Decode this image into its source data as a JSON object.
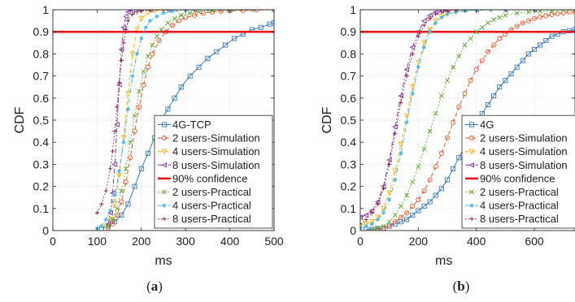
{
  "chart_data": [
    {
      "type": "line",
      "caption": "a",
      "xlabel": "ms",
      "ylabel": "CDF",
      "xlim": [
        0,
        500
      ],
      "ylim": [
        0,
        1
      ],
      "xticks": [
        0,
        100,
        200,
        300,
        400,
        500
      ],
      "yticks": [
        0,
        0.1,
        0.2,
        0.3,
        0.4,
        0.5,
        0.6,
        0.7,
        0.8,
        0.9,
        1
      ],
      "grid": true,
      "legend_position": "bottom-right",
      "series": [
        {
          "name": "4G-TCP",
          "color": "#3a79b9",
          "marker": "square",
          "dash": "solid",
          "x": [
            110,
            125,
            140,
            155,
            170,
            185,
            200,
            215,
            230,
            245,
            260,
            275,
            290,
            310,
            330,
            350,
            370,
            390,
            410,
            430,
            450,
            470,
            490,
            500
          ],
          "y": [
            0.01,
            0.02,
            0.04,
            0.07,
            0.12,
            0.2,
            0.28,
            0.35,
            0.42,
            0.5,
            0.55,
            0.6,
            0.65,
            0.7,
            0.74,
            0.78,
            0.81,
            0.84,
            0.87,
            0.89,
            0.91,
            0.92,
            0.935,
            0.94
          ]
        },
        {
          "name": "2 users-Simulation",
          "color": "#e05a2b",
          "marker": "circle",
          "dash": "dash",
          "x": [
            125,
            135,
            145,
            155,
            165,
            175,
            185,
            195,
            205,
            215,
            225,
            240,
            255,
            270,
            285,
            300,
            320,
            340,
            360,
            380,
            400,
            430,
            460,
            500
          ],
          "y": [
            0.01,
            0.03,
            0.07,
            0.13,
            0.22,
            0.33,
            0.45,
            0.56,
            0.66,
            0.74,
            0.8,
            0.86,
            0.9,
            0.93,
            0.95,
            0.965,
            0.975,
            0.985,
            0.99,
            0.993,
            0.995,
            0.997,
            0.999,
            1.0
          ]
        },
        {
          "name": "4 users-Simulation",
          "color": "#f0b020",
          "marker": "triangle-down",
          "dash": "dash",
          "x": [
            120,
            130,
            140,
            150,
            160,
            170,
            180,
            190,
            200,
            215,
            230,
            250,
            280,
            320,
            400,
            500
          ],
          "y": [
            0.02,
            0.05,
            0.12,
            0.25,
            0.42,
            0.62,
            0.8,
            0.91,
            0.96,
            0.985,
            0.995,
            0.999,
            1.0,
            1.0,
            1.0,
            1.0
          ]
        },
        {
          "name": "8 users-Simulation",
          "color": "#7e3a9c",
          "marker": "triangle-left",
          "dash": "dashdot",
          "x": [
            125,
            130,
            135,
            140,
            145,
            150,
            155,
            160,
            165,
            170,
            180,
            195,
            220,
            260,
            320,
            400,
            500
          ],
          "y": [
            0.03,
            0.08,
            0.17,
            0.3,
            0.48,
            0.66,
            0.82,
            0.92,
            0.97,
            0.99,
            0.997,
            1.0,
            1.0,
            1.0,
            1.0,
            1.0,
            1.0
          ]
        },
        {
          "name": "90% confidence",
          "color": "#e8161b",
          "marker": "none",
          "dash": "solid",
          "x": [
            0,
            500
          ],
          "y": [
            0.9,
            0.9
          ]
        },
        {
          "name": "2 users-Practical",
          "color": "#5aa02c",
          "marker": "x",
          "dash": "dot",
          "x": [
            125,
            135,
            145,
            155,
            165,
            175,
            185,
            195,
            205,
            215,
            225,
            235,
            245,
            260,
            275,
            290,
            310,
            330,
            360,
            400,
            450,
            500
          ],
          "y": [
            0.02,
            0.05,
            0.1,
            0.18,
            0.28,
            0.4,
            0.52,
            0.63,
            0.72,
            0.79,
            0.84,
            0.88,
            0.91,
            0.94,
            0.96,
            0.975,
            0.985,
            0.99,
            0.995,
            0.998,
            1.0,
            1.0
          ]
        },
        {
          "name": "4 users-Practical",
          "color": "#4fb8e0",
          "marker": "star",
          "dash": "dashdot",
          "x": [
            100,
            110,
            120,
            130,
            140,
            150,
            160,
            170,
            180,
            190,
            200,
            210,
            220,
            235,
            250,
            270,
            300,
            350,
            400,
            500
          ],
          "y": [
            0.01,
            0.02,
            0.05,
            0.09,
            0.16,
            0.27,
            0.4,
            0.55,
            0.7,
            0.8,
            0.87,
            0.92,
            0.95,
            0.97,
            0.985,
            0.993,
            0.998,
            1.0,
            1.0,
            1.0
          ]
        },
        {
          "name": "8 users-Practical",
          "color": "#8b1a3a",
          "marker": "plus",
          "dash": "dot",
          "x": [
            100,
            110,
            120,
            130,
            135,
            140,
            145,
            150,
            155,
            160,
            165,
            170,
            180,
            190,
            200,
            220,
            250,
            300,
            400,
            500
          ],
          "y": [
            0.08,
            0.12,
            0.18,
            0.28,
            0.36,
            0.45,
            0.56,
            0.67,
            0.77,
            0.85,
            0.91,
            0.95,
            0.98,
            0.99,
            0.995,
            0.999,
            1.0,
            1.0,
            1.0,
            1.0
          ]
        }
      ]
    },
    {
      "type": "line",
      "caption": "b",
      "xlabel": "ms",
      "ylabel": "CDF",
      "xlim": [
        0,
        740
      ],
      "ylim": [
        0,
        1
      ],
      "xticks": [
        0,
        200,
        400,
        600
      ],
      "yticks": [
        0,
        0.1,
        0.2,
        0.3,
        0.4,
        0.5,
        0.6,
        0.7,
        0.8,
        0.9,
        1
      ],
      "grid": true,
      "legend_position": "bottom-right",
      "series": [
        {
          "name": "4G",
          "color": "#3a79b9",
          "marker": "square",
          "dash": "solid",
          "x": [
            20,
            40,
            60,
            80,
            100,
            120,
            140,
            160,
            180,
            200,
            220,
            240,
            260,
            280,
            300,
            320,
            340,
            360,
            380,
            400,
            420,
            440,
            460,
            480,
            500,
            520,
            540,
            560,
            580,
            600,
            620,
            640,
            660,
            680,
            700,
            720,
            740
          ],
          "y": [
            0.005,
            0.005,
            0.01,
            0.01,
            0.02,
            0.03,
            0.04,
            0.05,
            0.07,
            0.09,
            0.11,
            0.13,
            0.16,
            0.19,
            0.23,
            0.28,
            0.33,
            0.38,
            0.43,
            0.48,
            0.53,
            0.57,
            0.61,
            0.65,
            0.68,
            0.71,
            0.74,
            0.77,
            0.8,
            0.82,
            0.84,
            0.86,
            0.88,
            0.89,
            0.9,
            0.905,
            0.91
          ]
        },
        {
          "name": "2 users-Simulation",
          "color": "#e05a2b",
          "marker": "circle",
          "dash": "dash",
          "x": [
            60,
            80,
            100,
            120,
            140,
            160,
            180,
            200,
            220,
            240,
            260,
            280,
            300,
            320,
            340,
            360,
            380,
            400,
            420,
            440,
            460,
            480,
            500,
            520,
            540,
            560,
            580,
            600,
            620,
            640,
            660,
            680,
            700,
            720,
            740
          ],
          "y": [
            0.005,
            0.01,
            0.02,
            0.04,
            0.06,
            0.08,
            0.11,
            0.14,
            0.18,
            0.23,
            0.29,
            0.35,
            0.42,
            0.49,
            0.56,
            0.62,
            0.68,
            0.73,
            0.77,
            0.81,
            0.84,
            0.87,
            0.89,
            0.91,
            0.925,
            0.94,
            0.95,
            0.96,
            0.967,
            0.973,
            0.978,
            0.982,
            0.986,
            0.989,
            0.99
          ]
        },
        {
          "name": "4 users-Simulation",
          "color": "#f0b020",
          "marker": "triangle-down",
          "dash": "dash",
          "x": [
            0,
            20,
            40,
            60,
            80,
            100,
            120,
            140,
            160,
            180,
            200,
            220,
            240,
            260,
            280,
            300,
            330,
            360,
            400,
            450,
            500,
            600,
            740
          ],
          "y": [
            0.02,
            0.03,
            0.04,
            0.06,
            0.1,
            0.17,
            0.27,
            0.39,
            0.52,
            0.65,
            0.76,
            0.85,
            0.91,
            0.95,
            0.97,
            0.98,
            0.99,
            0.995,
            0.998,
            1.0,
            1.0,
            1.0,
            1.0
          ]
        },
        {
          "name": "8 users-Simulation",
          "color": "#7e3a9c",
          "marker": "triangle-left",
          "dash": "dashdot",
          "x": [
            0,
            20,
            40,
            60,
            80,
            100,
            120,
            140,
            160,
            180,
            200,
            220,
            240,
            260,
            280,
            300,
            330,
            360,
            400,
            500,
            600,
            740
          ],
          "y": [
            0.06,
            0.07,
            0.09,
            0.13,
            0.2,
            0.32,
            0.47,
            0.61,
            0.73,
            0.83,
            0.9,
            0.95,
            0.975,
            0.99,
            0.995,
            0.998,
            1.0,
            1.0,
            1.0,
            1.0,
            1.0,
            1.0
          ]
        },
        {
          "name": "90% confidence",
          "color": "#e8161b",
          "marker": "none",
          "dash": "solid",
          "x": [
            0,
            740
          ],
          "y": [
            0.9,
            0.9
          ]
        },
        {
          "name": "2 users-Practical",
          "color": "#5aa02c",
          "marker": "x",
          "dash": "dot",
          "x": [
            40,
            60,
            80,
            100,
            120,
            140,
            160,
            180,
            200,
            220,
            240,
            260,
            280,
            300,
            320,
            340,
            360,
            380,
            400,
            420,
            440,
            460,
            480,
            500,
            540,
            580,
            620,
            660,
            700,
            740
          ],
          "y": [
            0.005,
            0.01,
            0.02,
            0.04,
            0.07,
            0.11,
            0.16,
            0.22,
            0.29,
            0.37,
            0.45,
            0.53,
            0.61,
            0.68,
            0.74,
            0.79,
            0.84,
            0.87,
            0.9,
            0.92,
            0.94,
            0.955,
            0.965,
            0.975,
            0.985,
            0.99,
            0.993,
            0.996,
            0.998,
            1.0
          ]
        },
        {
          "name": "4 users-Practical",
          "color": "#4fb8e0",
          "marker": "star",
          "dash": "dashdot",
          "x": [
            0,
            20,
            40,
            60,
            80,
            100,
            120,
            140,
            160,
            180,
            200,
            220,
            240,
            260,
            280,
            300,
            330,
            360,
            400,
            450,
            500,
            600,
            740
          ],
          "y": [
            0.01,
            0.02,
            0.03,
            0.05,
            0.08,
            0.14,
            0.23,
            0.35,
            0.49,
            0.62,
            0.74,
            0.83,
            0.9,
            0.94,
            0.965,
            0.98,
            0.99,
            0.995,
            0.998,
            1.0,
            1.0,
            1.0,
            1.0
          ]
        },
        {
          "name": "8 users-Practical",
          "color": "#8b1a3a",
          "marker": "plus",
          "dash": "dot",
          "x": [
            0,
            20,
            40,
            60,
            80,
            100,
            120,
            140,
            160,
            180,
            200,
            220,
            240,
            260,
            280,
            300,
            330,
            360,
            400,
            500,
            600,
            740
          ],
          "y": [
            0.03,
            0.05,
            0.08,
            0.12,
            0.19,
            0.3,
            0.44,
            0.58,
            0.7,
            0.8,
            0.88,
            0.93,
            0.96,
            0.98,
            0.99,
            0.995,
            0.998,
            1.0,
            1.0,
            1.0,
            1.0,
            1.0
          ]
        }
      ]
    }
  ]
}
